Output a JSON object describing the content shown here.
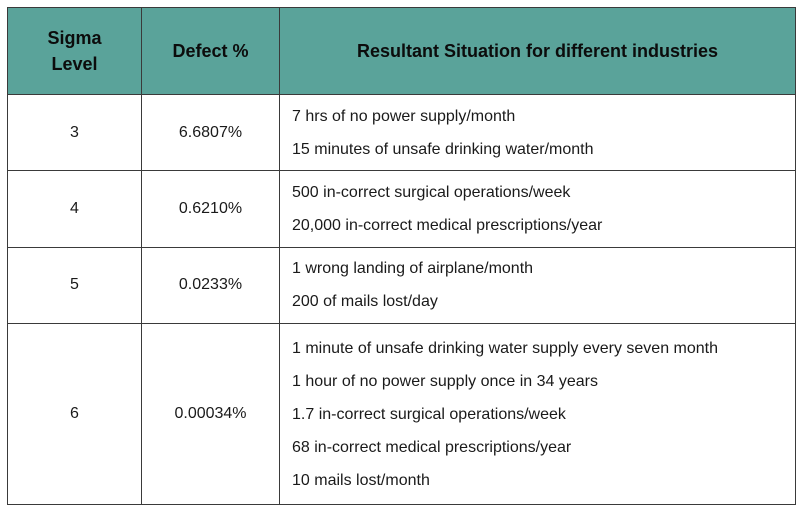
{
  "header": {
    "col1_line1": "Sigma",
    "col1_line2": "Level",
    "col2": "Defect %",
    "col3": "Resultant Situation for different industries"
  },
  "rows": [
    {
      "sigma": "3",
      "defect": "6.6807%",
      "situations": [
        "7 hrs of no power supply/month",
        "15 minutes of unsafe drinking water/month"
      ]
    },
    {
      "sigma": "4",
      "defect": "0.6210%",
      "situations": [
        "500 in-correct surgical operations/week",
        "20,000 in-correct medical prescriptions/year"
      ]
    },
    {
      "sigma": "5",
      "defect": "0.0233%",
      "situations": [
        "1 wrong landing of airplane/month",
        "200 of mails lost/day"
      ]
    },
    {
      "sigma": "6",
      "defect": "0.00034%",
      "situations": [
        "1 minute of unsafe drinking water supply every seven month",
        "1 hour of no power supply once in 34 years",
        "1.7 in-correct surgical operations/week",
        "68 in-correct medical prescriptions/year",
        "10 mails lost/month"
      ]
    }
  ],
  "colors": {
    "header_bg": "#5aa39a",
    "border": "#3a3a3a"
  }
}
